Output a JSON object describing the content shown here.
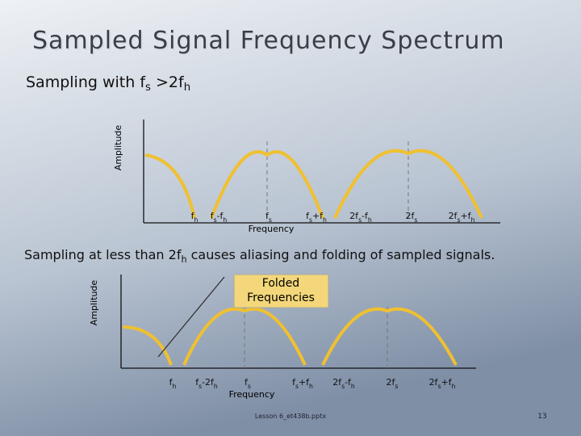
{
  "header": {
    "title": "Sampled Signal Frequency Spectrum",
    "subtitle": [
      {
        "t": "Sampling with f"
      },
      {
        "t": "s",
        "sub": true
      },
      {
        "t": " >2f"
      },
      {
        "t": "h",
        "sub": true
      }
    ]
  },
  "diagram1": {
    "y_axis_label": "Amplitude",
    "x_axis_label": "Frequency",
    "labels": [
      [
        {
          "t": "f"
        },
        {
          "t": "h",
          "sub": true
        }
      ],
      [
        {
          "t": "f"
        },
        {
          "t": "s",
          "sub": true
        },
        {
          "t": "-f"
        },
        {
          "t": "h",
          "sub": true
        }
      ],
      [
        {
          "t": "f"
        },
        {
          "t": "s",
          "sub": true
        }
      ],
      [
        {
          "t": "f"
        },
        {
          "t": "s",
          "sub": true
        },
        {
          "t": "+f"
        },
        {
          "t": "h",
          "sub": true
        }
      ],
      [
        {
          "t": "2f"
        },
        {
          "t": "s",
          "sub": true
        },
        {
          "t": "-f"
        },
        {
          "t": "h",
          "sub": true
        }
      ],
      [
        {
          "t": "2f"
        },
        {
          "t": "s",
          "sub": true
        }
      ],
      [
        {
          "t": "2f"
        },
        {
          "t": "s",
          "sub": true
        },
        {
          "t": "+f"
        },
        {
          "t": "h",
          "sub": true
        }
      ]
    ]
  },
  "caption": [
    {
      "t": "Sampling at less than 2f"
    },
    {
      "t": "h",
      "sub": true
    },
    {
      "t": " causes aliasing and folding of sampled signals."
    }
  ],
  "diagram2": {
    "y_axis_label": "Amplitude",
    "x_axis_label": "Frequency",
    "callout": [
      "Folded",
      "Frequencies"
    ],
    "labels": [
      [
        {
          "t": "f"
        },
        {
          "t": "h",
          "sub": true
        }
      ],
      [
        {
          "t": "f"
        },
        {
          "t": "s",
          "sub": true
        },
        {
          "t": "-2f"
        },
        {
          "t": "h",
          "sub": true
        }
      ],
      [
        {
          "t": "f"
        },
        {
          "t": "s",
          "sub": true
        }
      ],
      [
        {
          "t": "f"
        },
        {
          "t": "s",
          "sub": true
        },
        {
          "t": "+f"
        },
        {
          "t": "h",
          "sub": true
        }
      ],
      [
        {
          "t": "2f"
        },
        {
          "t": "s",
          "sub": true
        },
        {
          "t": "-f"
        },
        {
          "t": "h",
          "sub": true
        }
      ],
      [
        {
          "t": "2f"
        },
        {
          "t": "s",
          "sub": true
        }
      ],
      [
        {
          "t": "2f"
        },
        {
          "t": "s",
          "sub": true
        },
        {
          "t": "+f"
        },
        {
          "t": "h",
          "sub": true
        }
      ]
    ]
  },
  "footer": {
    "file": "Lesson 6_et438b.pptx",
    "page": "13"
  }
}
